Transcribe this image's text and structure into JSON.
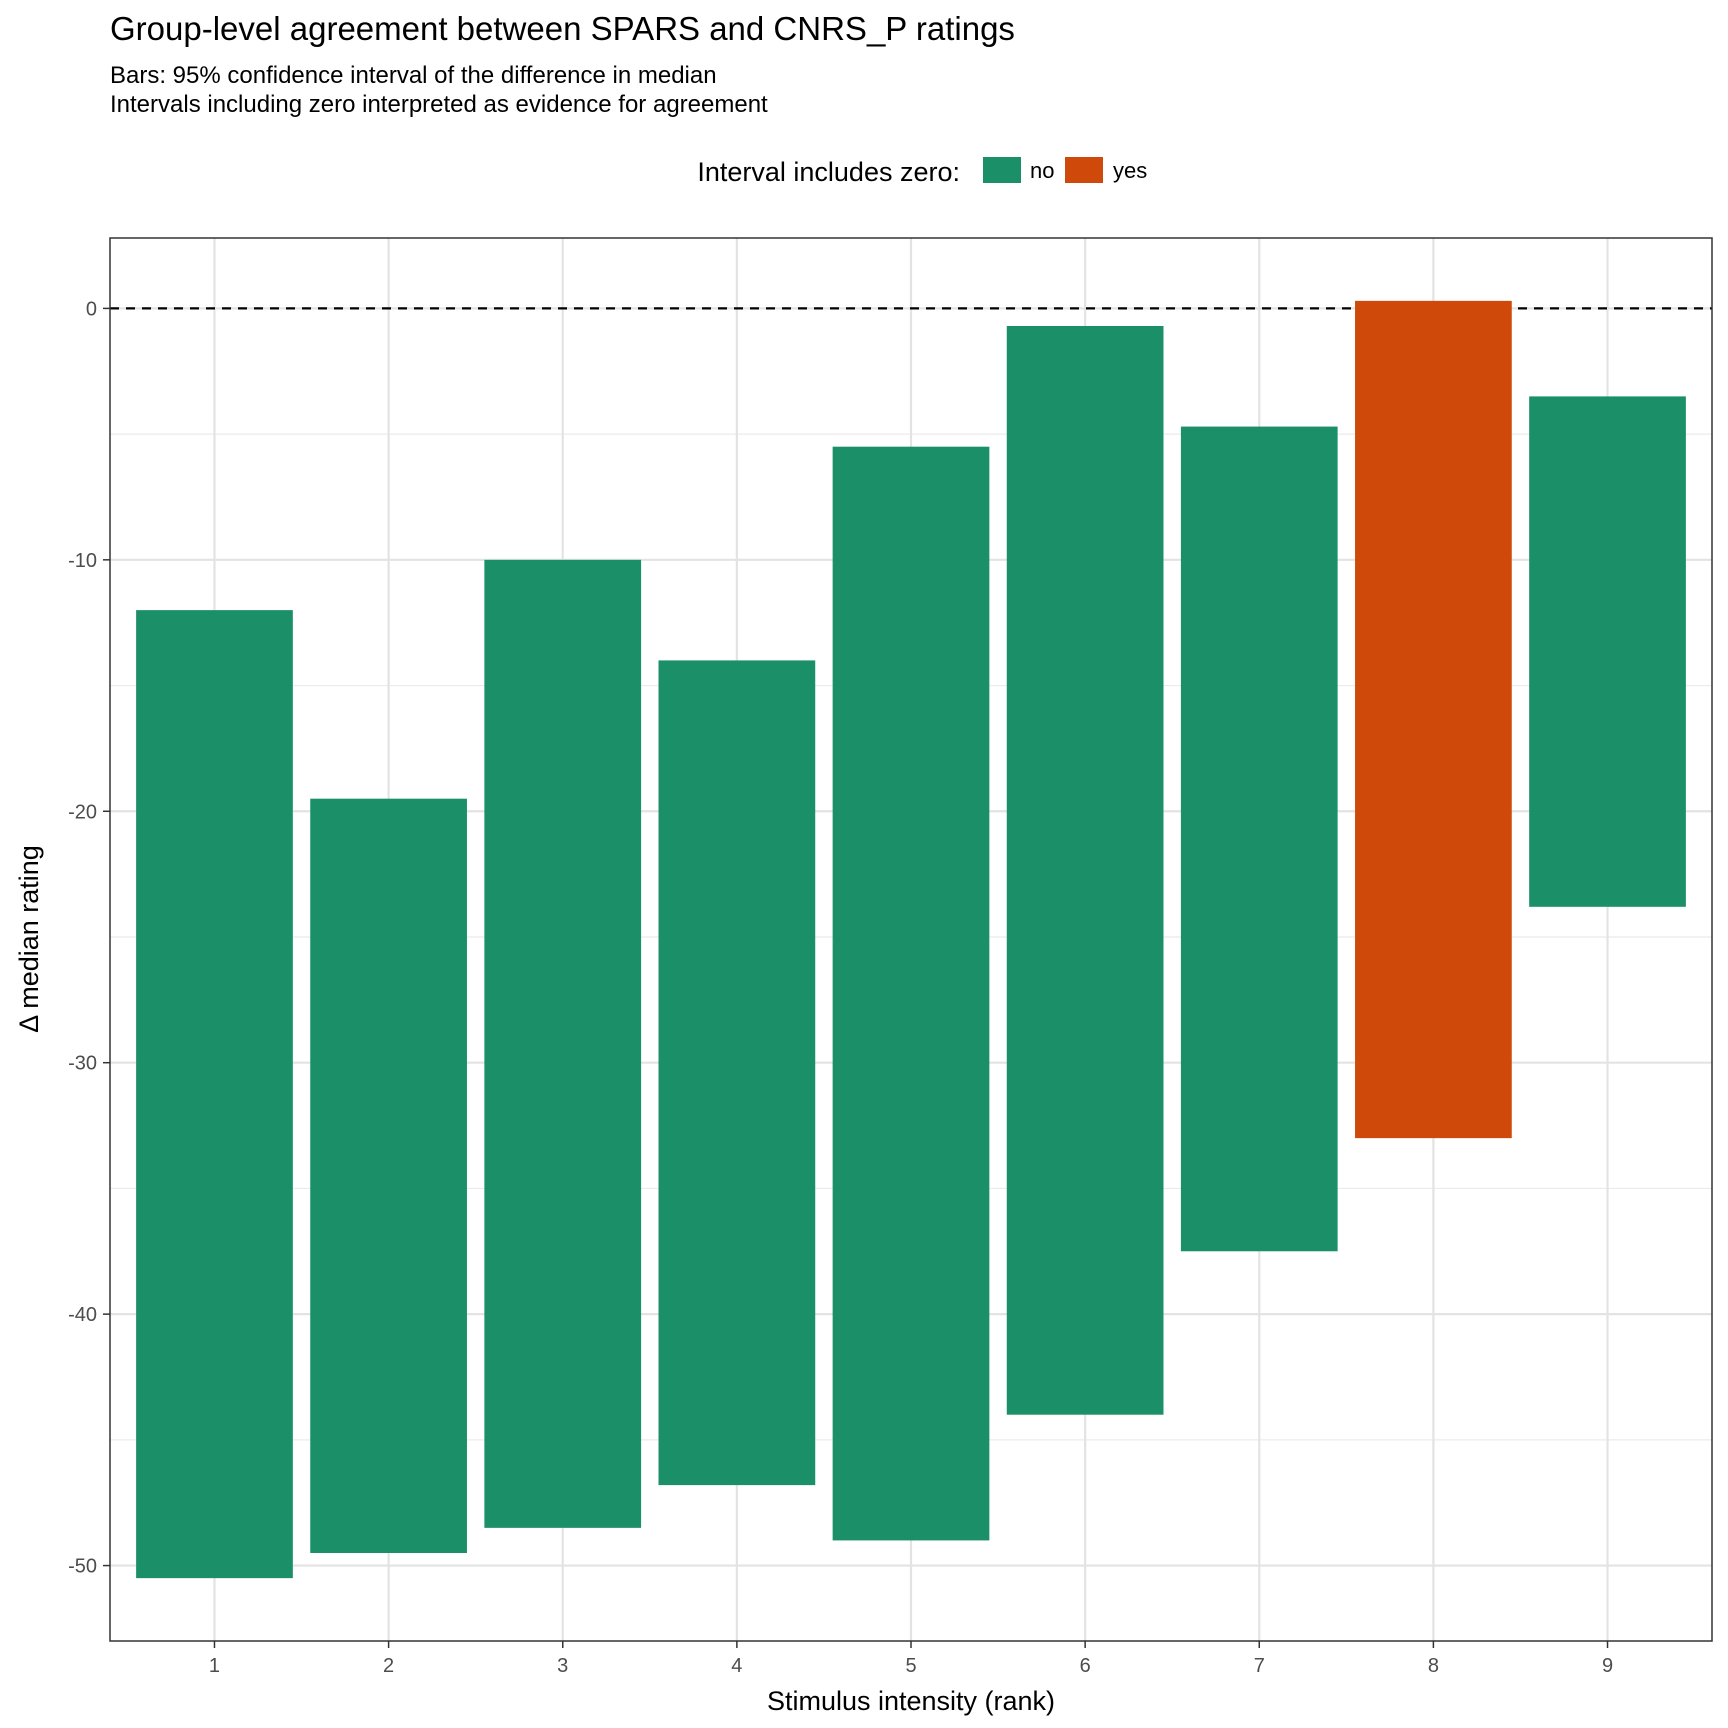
{
  "chart_data": {
    "type": "bar",
    "subtype": "floating-interval",
    "title": "Group-level agreement between SPARS and CNRS_P ratings",
    "subtitle": [
      "Bars: 95% confidence interval of the difference in median",
      "Intervals including zero interpreted as evidence for agreement"
    ],
    "xlabel": "Stimulus intensity (rank)",
    "ylabel": "Δ median rating",
    "categories": [
      "1",
      "2",
      "3",
      "4",
      "5",
      "6",
      "7",
      "8",
      "9"
    ],
    "ylim": [
      -53,
      2.8
    ],
    "yticks": [
      0,
      -10,
      -20,
      -30,
      -40,
      -50
    ],
    "ytick_labels": [
      "0",
      "-10",
      "-20",
      "-30",
      "-40",
      "-50"
    ],
    "reference_line": {
      "y": 0,
      "style": "dashed"
    },
    "legend": {
      "title": "Interval includes zero:",
      "placement": "top",
      "entries": [
        {
          "label": "no",
          "color": "#1b9068"
        },
        {
          "label": "yes",
          "color": "#cf4a0a"
        }
      ]
    },
    "intervals": [
      {
        "x": "1",
        "low": -50.5,
        "high": -12.0,
        "includes_zero": "no"
      },
      {
        "x": "2",
        "low": -49.5,
        "high": -19.5,
        "includes_zero": "no"
      },
      {
        "x": "3",
        "low": -48.5,
        "high": -10.0,
        "includes_zero": "no"
      },
      {
        "x": "4",
        "low": -46.8,
        "high": -14.0,
        "includes_zero": "no"
      },
      {
        "x": "5",
        "low": -49.0,
        "high": -5.5,
        "includes_zero": "no"
      },
      {
        "x": "6",
        "low": -44.0,
        "high": -0.7,
        "includes_zero": "no"
      },
      {
        "x": "7",
        "low": -37.5,
        "high": -4.7,
        "includes_zero": "no"
      },
      {
        "x": "8",
        "low": -33.0,
        "high": 0.3,
        "includes_zero": "yes"
      },
      {
        "x": "9",
        "low": -23.8,
        "high": -3.5,
        "includes_zero": "no"
      }
    ],
    "colors": {
      "no": "#1b9068",
      "yes": "#cf4a0a"
    },
    "grid": true
  }
}
